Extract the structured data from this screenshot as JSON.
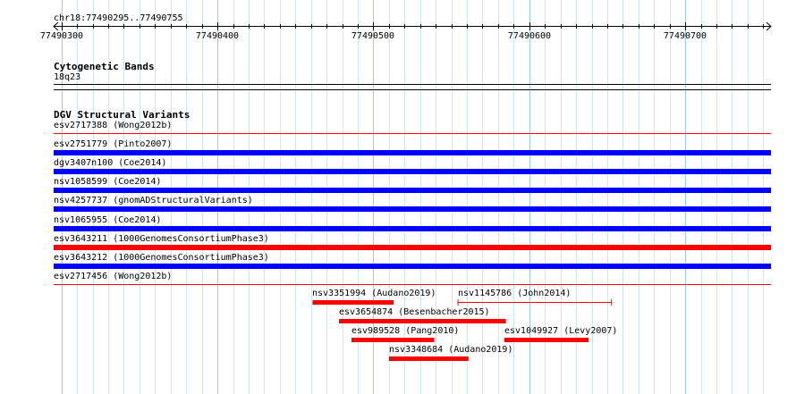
{
  "ruler": {
    "range_label": "chr18:77490295..77490755",
    "start": 77490295,
    "end": 77490755,
    "ticks": [
      {
        "pos": 77490300,
        "label": "77490300"
      },
      {
        "pos": 77490400,
        "label": "77490400"
      },
      {
        "pos": 77490500,
        "label": "77490500"
      },
      {
        "pos": 77490600,
        "label": "77490600"
      },
      {
        "pos": 77490700,
        "label": "77490700"
      }
    ]
  },
  "cyto": {
    "title": "Cytogenetic Bands",
    "band": "18q23"
  },
  "dgv": {
    "title": "DGV Structural Variants",
    "rows": [
      {
        "label": "esv2717388 (Wong2012b)",
        "color": "#ff0000",
        "style": "line"
      },
      {
        "label": "esv2751779 (Pinto2007)",
        "color": "#0000ff",
        "style": "bar"
      },
      {
        "label": "dgv3407n100 (Coe2014)",
        "color": "#0000ff",
        "style": "bar"
      },
      {
        "label": "nsv1058599 (Coe2014)",
        "color": "#0000ff",
        "style": "bar"
      },
      {
        "label": "nsv4257737 (gnomADStructuralVariants)",
        "color": "#0000ff",
        "style": "bar"
      },
      {
        "label": "nsv1065955 (Coe2014)",
        "color": "#0000ff",
        "style": "bar"
      },
      {
        "label": "esv3643211 (1000GenomesConsortiumPhase3)",
        "color": "#ff0000",
        "style": "bar"
      },
      {
        "label": "esv3643212 (1000GenomesConsortiumPhase3)",
        "color": "#0000ff",
        "style": "bar"
      },
      {
        "label": "esv2717456 (Wong2012b)",
        "color": "#ff0000",
        "style": "line"
      }
    ],
    "packed": [
      {
        "label": "nsv3351994 (Audano2019)",
        "start": 77490461,
        "end": 77490513,
        "lane": 0,
        "color": "#ff0000",
        "style": "bar"
      },
      {
        "label": "nsv1145786 (John2014)",
        "start": 77490554,
        "end": 77490653,
        "lane": 0,
        "color": "#ff0000",
        "style": "whisker"
      },
      {
        "label": "esv3654874 (Besenbacher2015)",
        "start": 77490478,
        "end": 77490585,
        "lane": 1,
        "color": "#ff0000",
        "style": "bar"
      },
      {
        "label": "esv989528 (Pang2010)",
        "start": 77490486,
        "end": 77490539,
        "lane": 2,
        "color": "#ff0000",
        "style": "bar"
      },
      {
        "label": "esv1049927 (Levy2007)",
        "start": 77490584,
        "end": 77490638,
        "lane": 2,
        "color": "#ff0000",
        "style": "bar"
      },
      {
        "label": "nsv3348684 (Audano2019)",
        "start": 77490510,
        "end": 77490561,
        "lane": 3,
        "color": "#ff0000",
        "style": "bar"
      }
    ]
  }
}
